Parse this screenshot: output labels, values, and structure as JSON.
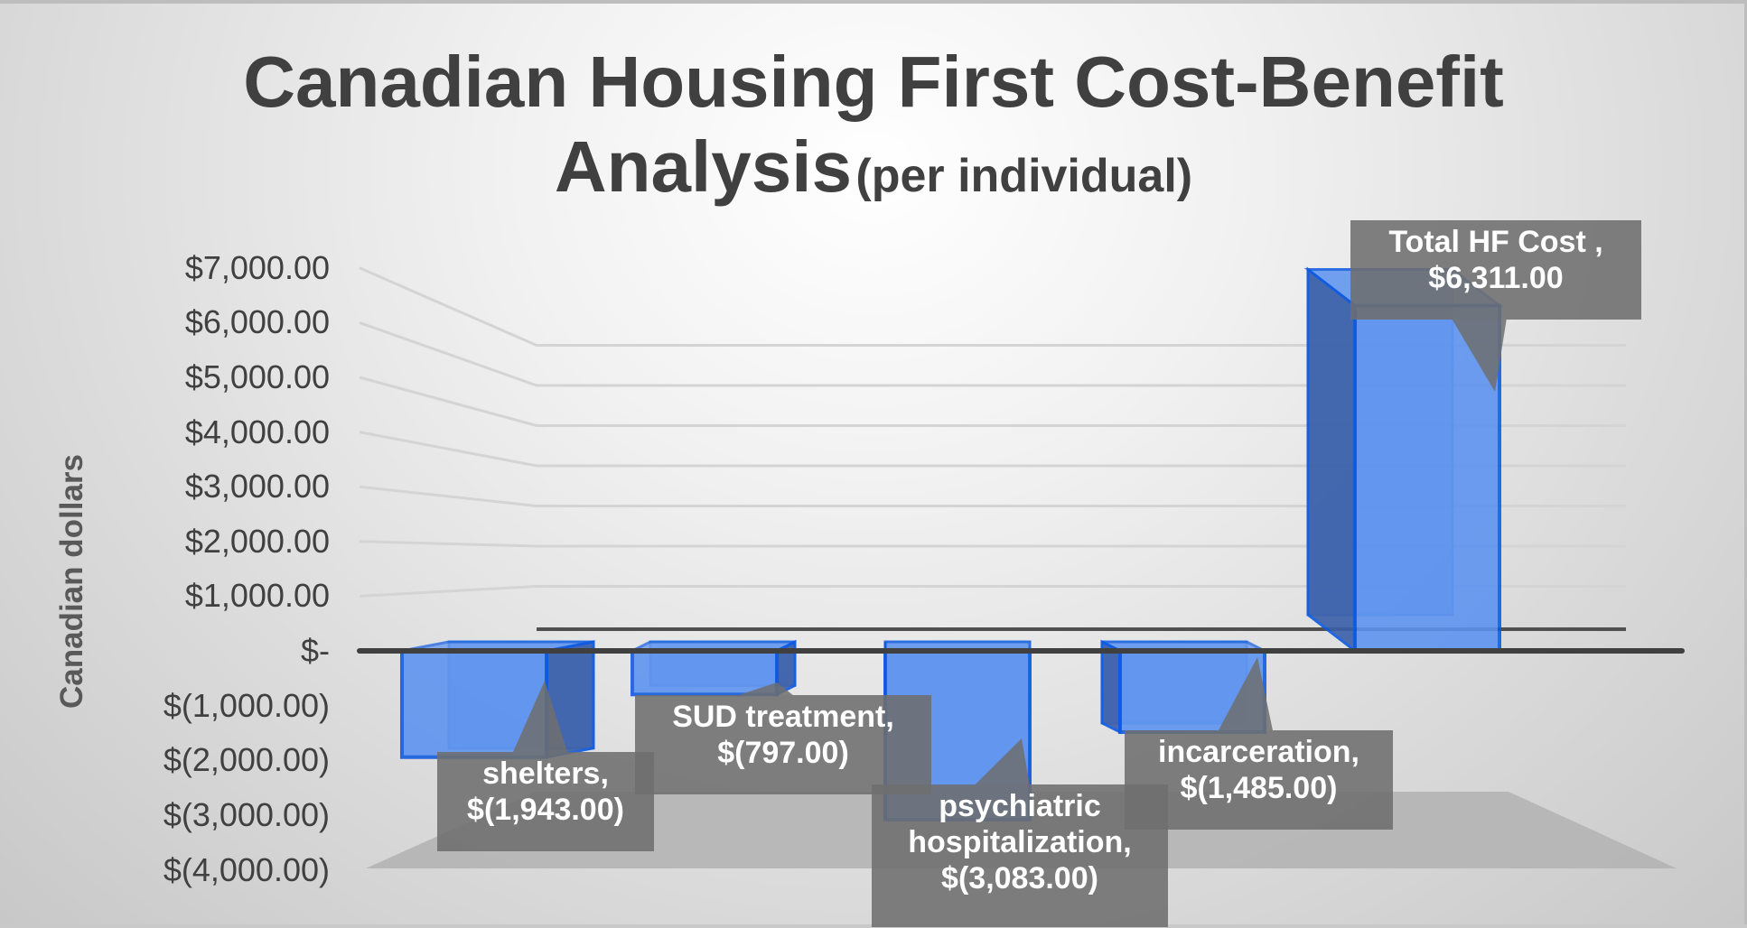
{
  "chart_data": {
    "type": "bar",
    "style": "3d-column",
    "title": "Canadian Housing First Cost-Benefit Analysis",
    "subtitle": "(per individual)",
    "xlabel": "",
    "ylabel": "Canadian dollars",
    "ylim": [
      -4000,
      7000
    ],
    "grid": true,
    "legend": null,
    "categories": [
      "shelters",
      "SUD treatment",
      "psychiatric hospitalization",
      "incarceration",
      "Total HF Cost"
    ],
    "values": [
      -1943,
      -797,
      -3083,
      -1485,
      6311
    ],
    "y_ticks": [
      "$7,000.00",
      "$6,000.00",
      "$5,000.00",
      "$4,000.00",
      "$3,000.00",
      "$2,000.00",
      "$1,000.00",
      "$-",
      "$(1,000.00)",
      "$(2,000.00)",
      "$(3,000.00)",
      "$(4,000.00)"
    ],
    "data_labels": [
      {
        "name": "shelters,",
        "value": "$(1,943.00)"
      },
      {
        "name": "SUD treatment,",
        "value": "$(797.00)"
      },
      {
        "name": "psychiatric",
        "name2": "hospitalization,",
        "value": "$(3,083.00)"
      },
      {
        "name": "incarceration,",
        "value": "$(1,485.00)"
      },
      {
        "name": "Total HF Cost ,",
        "value": "$6,311.00"
      }
    ],
    "colors": {
      "bar_front": "#5b92f0",
      "bar_side": "#3a5fa8",
      "bar_edge": "#0d5ae0",
      "label_bg": "#6e6e6e",
      "axis_line": "#404040",
      "gridline": "#d4d4d4"
    }
  },
  "title": {
    "main_line1": "Canadian Housing First Cost-Benefit",
    "main_line2": "Analysis",
    "sub": "(per individual)"
  },
  "y_axis": {
    "title": "Canadian dollars"
  }
}
